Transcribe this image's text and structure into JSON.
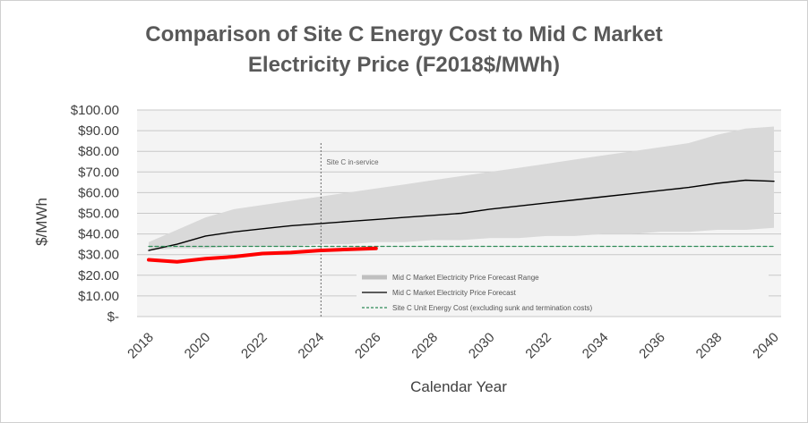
{
  "chart_data": {
    "type": "line",
    "title_line1": "Comparison of Site C Energy Cost to Mid C Market",
    "title_line2": "Electricity Price (F2018$/MWh)",
    "xlabel": "Calendar Year",
    "ylabel": "$/MWh",
    "xlim": [
      2018,
      2040
    ],
    "ylim": [
      0,
      100
    ],
    "x_ticks": [
      "2018",
      "2020",
      "2022",
      "2024",
      "2026",
      "2028",
      "2030",
      "2032",
      "2034",
      "2036",
      "2038",
      "2040"
    ],
    "y_ticks": [
      "$-",
      "$10.00",
      "$20.00",
      "$30.00",
      "$40.00",
      "$50.00",
      "$60.00",
      "$70.00",
      "$80.00",
      "$90.00",
      "$100.00"
    ],
    "annotation": {
      "x": 2024,
      "text": "Site C in-service"
    },
    "series": [
      {
        "name": "Mid C Market Electricity Price Forecast Range",
        "kind": "band",
        "color": "#d9d9d9",
        "x": [
          2018,
          2019,
          2020,
          2021,
          2022,
          2023,
          2024,
          2025,
          2026,
          2027,
          2028,
          2029,
          2030,
          2031,
          2032,
          2033,
          2034,
          2035,
          2036,
          2037,
          2038,
          2039,
          2040
        ],
        "upper": [
          36,
          42,
          48,
          52,
          54,
          56,
          58,
          60,
          62,
          64,
          66,
          68,
          70,
          72,
          74,
          76,
          78,
          80,
          82,
          84,
          88,
          91,
          92
        ],
        "lower": [
          32,
          33,
          33,
          34,
          34,
          34,
          35,
          35,
          36,
          36,
          37,
          37,
          38,
          38,
          39,
          39,
          40,
          40,
          41,
          41,
          42,
          42,
          43
        ]
      },
      {
        "name": "Mid C Market Electricity Price Forecast",
        "kind": "line",
        "color": "#000000",
        "x": [
          2018,
          2019,
          2020,
          2021,
          2022,
          2023,
          2024,
          2025,
          2026,
          2027,
          2028,
          2029,
          2030,
          2031,
          2032,
          2033,
          2034,
          2035,
          2036,
          2037,
          2038,
          2039,
          2040
        ],
        "values": [
          32,
          35,
          39,
          41,
          42.5,
          44,
          45,
          46,
          47,
          48,
          49,
          50,
          52,
          53.5,
          55,
          56.5,
          58,
          59.5,
          61,
          62.5,
          64.5,
          66,
          65.5
        ]
      },
      {
        "name": "Site C Unit Energy Cost (excluding sunk and termination costs)",
        "kind": "dashed",
        "color": "#2e8b57",
        "x": [
          2018,
          2040
        ],
        "values": [
          34,
          34
        ]
      },
      {
        "name": "",
        "kind": "line",
        "color": "#ff0000",
        "x": [
          2018,
          2019,
          2020,
          2021,
          2022,
          2023,
          2024,
          2025,
          2026
        ],
        "values": [
          27.5,
          26.5,
          28,
          29,
          30.5,
          31,
          32,
          32.5,
          33
        ]
      }
    ]
  }
}
